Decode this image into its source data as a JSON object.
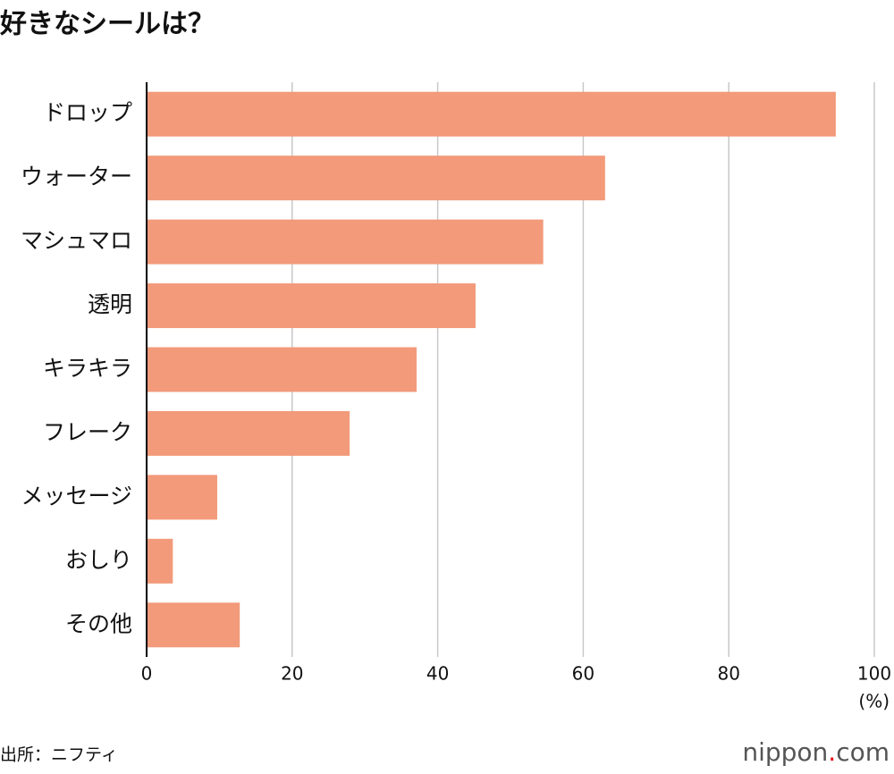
{
  "chart_data": {
    "type": "bar",
    "orientation": "horizontal",
    "title": "好きなシールは？",
    "categories": [
      "ドロップ",
      "ウォーター",
      "マシュマロ",
      "透明",
      "キラキラ",
      "フレーク",
      "メッセージ",
      "おしり",
      "その他"
    ],
    "values": [
      94.7,
      63.0,
      54.5,
      45.2,
      37.1,
      27.9,
      9.7,
      3.6,
      12.8
    ],
    "color": "#f29a7a",
    "xlim": [
      0,
      100
    ],
    "xticks": [
      0,
      20,
      40,
      60,
      80,
      100
    ],
    "grid": true,
    "x_label": "(%)",
    "source": "出所：ニフティ",
    "logo": [
      "nippon",
      ".",
      "com"
    ]
  }
}
